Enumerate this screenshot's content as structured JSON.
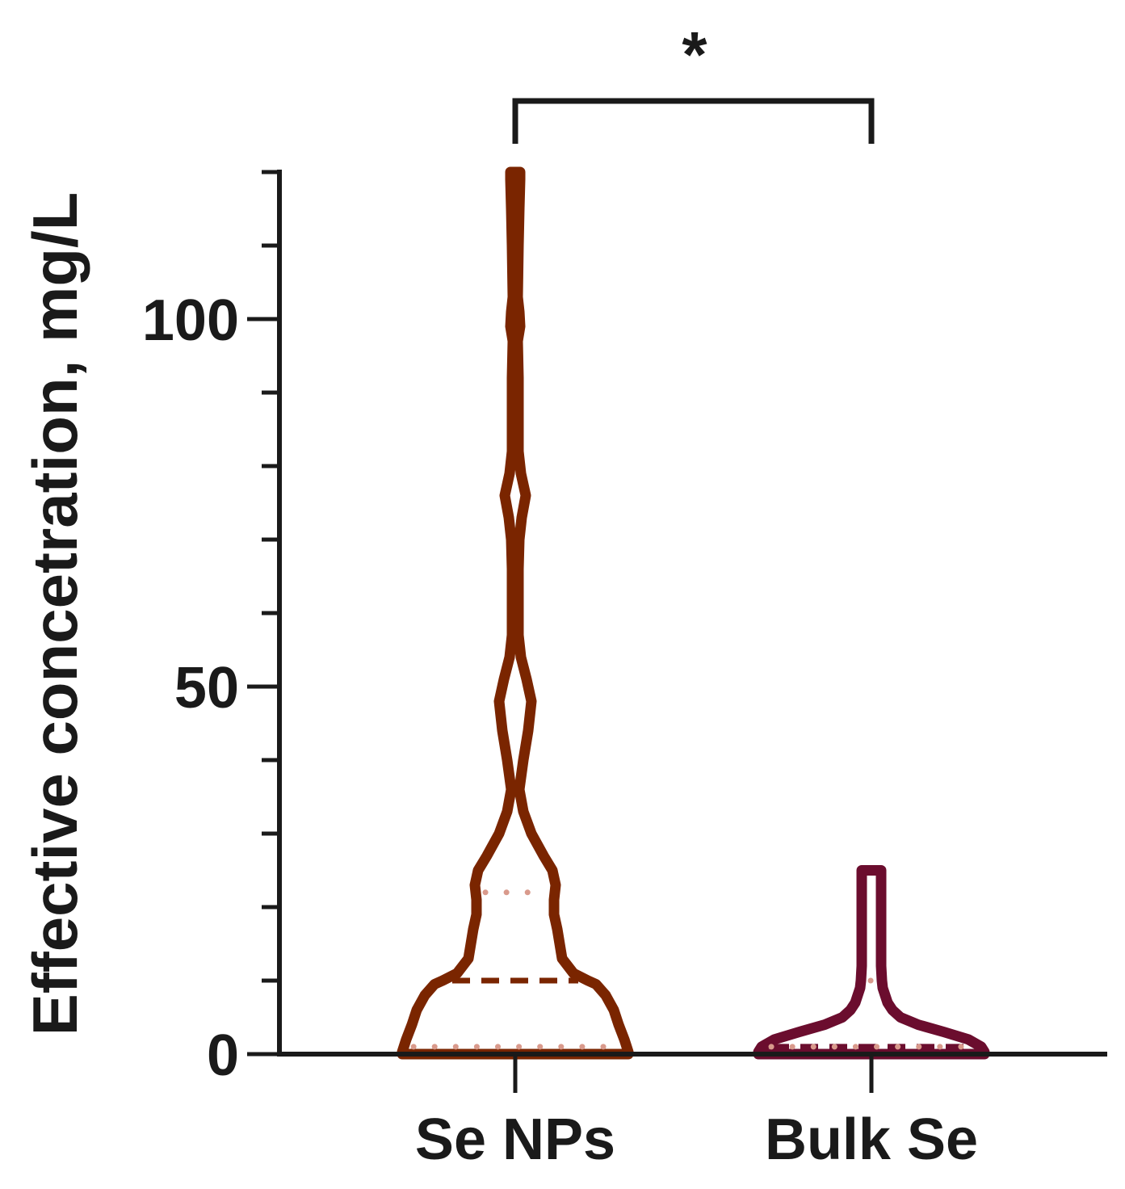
{
  "chart_data": {
    "type": "violin",
    "ylabel": "Effective concetration, mg/L",
    "ylim": [
      0,
      120
    ],
    "yticks": [
      0,
      50,
      100
    ],
    "categories": [
      "Se NPs",
      "Bulk Se"
    ],
    "series": [
      {
        "category": "Se NPs",
        "color": "#7a2500",
        "quartile_color": "#d99a8c",
        "max": 120,
        "min": 0,
        "median": 10,
        "q1": 1,
        "q3": 22
      },
      {
        "category": "Bulk Se",
        "color": "#6b0d2e",
        "quartile_color": "#d99a8c",
        "max": 25,
        "min": 0,
        "median": 1,
        "q1": 1,
        "q3": 10
      }
    ],
    "significance": {
      "label": "*",
      "between": [
        "Se NPs",
        "Bulk Se"
      ]
    }
  }
}
